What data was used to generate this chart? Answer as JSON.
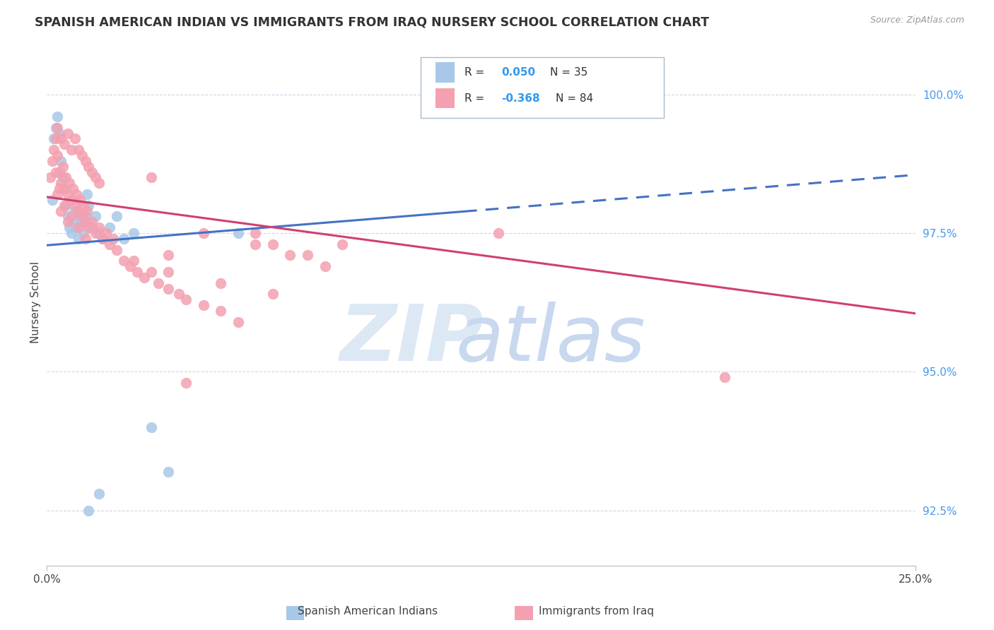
{
  "title": "SPANISH AMERICAN INDIAN VS IMMIGRANTS FROM IRAQ NURSERY SCHOOL CORRELATION CHART",
  "source": "Source: ZipAtlas.com",
  "ylabel": "Nursery School",
  "yticks": [
    92.5,
    95.0,
    97.5,
    100.0
  ],
  "ytick_labels": [
    "92.5%",
    "95.0%",
    "97.5%",
    "100.0%"
  ],
  "xlim": [
    0.0,
    25.0
  ],
  "ylim": [
    91.5,
    101.0
  ],
  "color_blue": "#a8c8e8",
  "color_blue_line": "#4472c4",
  "color_pink": "#f4a0b0",
  "color_pink_line": "#d04070",
  "watermark_zip": "ZIP",
  "watermark_atlas": "atlas",
  "blue_line_x0": 0.0,
  "blue_line_y0": 97.28,
  "blue_line_x1": 25.0,
  "blue_line_y1": 98.55,
  "blue_solid_end": 12.0,
  "pink_line_x0": 0.0,
  "pink_line_y0": 98.15,
  "pink_line_x1": 25.0,
  "pink_line_y1": 96.05,
  "blue_scatter_x": [
    0.15,
    0.2,
    0.25,
    0.3,
    0.35,
    0.4,
    0.45,
    0.5,
    0.55,
    0.6,
    0.65,
    0.7,
    0.75,
    0.8,
    0.85,
    0.9,
    0.95,
    1.0,
    1.05,
    1.1,
    1.15,
    1.2,
    1.3,
    1.4,
    1.5,
    1.6,
    1.8,
    2.0,
    2.2,
    2.5,
    3.0,
    3.5,
    5.5,
    1.2,
    1.5
  ],
  "blue_scatter_y": [
    98.1,
    99.2,
    99.4,
    99.6,
    99.3,
    98.8,
    98.5,
    98.3,
    98.0,
    97.8,
    97.6,
    97.5,
    97.7,
    97.9,
    97.6,
    97.4,
    97.8,
    97.7,
    97.5,
    97.8,
    98.2,
    98.0,
    97.6,
    97.8,
    97.5,
    97.4,
    97.6,
    97.8,
    97.4,
    97.5,
    94.0,
    93.2,
    97.5,
    92.5,
    92.8
  ],
  "pink_scatter_x": [
    0.1,
    0.15,
    0.2,
    0.25,
    0.3,
    0.35,
    0.4,
    0.45,
    0.5,
    0.55,
    0.6,
    0.65,
    0.7,
    0.75,
    0.8,
    0.85,
    0.9,
    0.95,
    1.0,
    1.05,
    1.1,
    1.15,
    1.2,
    1.3,
    1.4,
    1.5,
    1.6,
    1.7,
    1.8,
    1.9,
    2.0,
    2.2,
    2.4,
    2.6,
    2.8,
    3.0,
    3.2,
    3.5,
    3.8,
    4.0,
    4.5,
    5.0,
    5.5,
    6.0,
    6.5,
    7.5,
    0.3,
    0.4,
    0.5,
    0.6,
    0.7,
    0.8,
    0.9,
    1.0,
    1.1,
    1.2,
    1.3,
    1.4,
    1.5,
    0.25,
    0.35,
    3.0,
    4.5,
    6.0,
    7.0,
    8.0,
    2.5,
    3.5,
    5.0,
    6.5,
    8.5,
    3.5,
    4.0,
    0.3,
    0.5,
    0.7,
    0.9,
    1.1,
    0.4,
    0.6,
    19.5,
    13.0
  ],
  "pink_scatter_y": [
    98.5,
    98.8,
    99.0,
    99.2,
    98.9,
    98.6,
    98.4,
    98.7,
    98.3,
    98.5,
    98.2,
    98.4,
    98.1,
    98.3,
    98.0,
    98.2,
    97.9,
    98.1,
    97.8,
    98.0,
    97.7,
    97.9,
    97.6,
    97.7,
    97.5,
    97.6,
    97.4,
    97.5,
    97.3,
    97.4,
    97.2,
    97.0,
    96.9,
    96.8,
    96.7,
    96.8,
    96.6,
    96.5,
    96.4,
    96.3,
    96.2,
    96.1,
    95.9,
    97.5,
    97.3,
    97.1,
    99.4,
    99.2,
    99.1,
    99.3,
    99.0,
    99.2,
    99.0,
    98.9,
    98.8,
    98.7,
    98.6,
    98.5,
    98.4,
    98.6,
    98.3,
    98.5,
    97.5,
    97.3,
    97.1,
    96.9,
    97.0,
    96.8,
    96.6,
    96.4,
    97.3,
    97.1,
    94.8,
    98.2,
    98.0,
    97.8,
    97.6,
    97.4,
    97.9,
    97.7,
    94.9,
    97.5
  ]
}
